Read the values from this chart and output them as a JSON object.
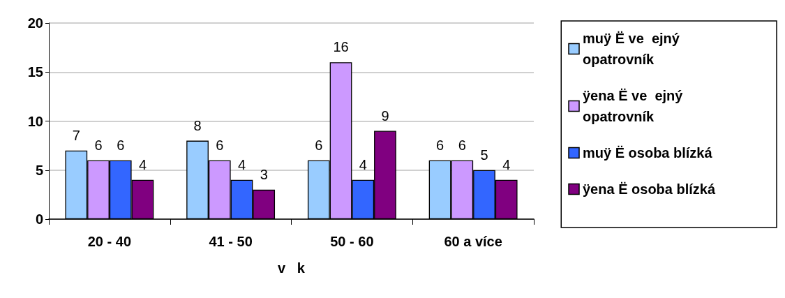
{
  "chart_data": {
    "type": "bar",
    "xlabel": "v   k",
    "categories": [
      "20 - 40",
      "41 - 50",
      "50 - 60",
      "60 a více"
    ],
    "series": [
      {
        "name": "muÿ Ë ve  ejný opatrovník",
        "color": "#99ccff",
        "values": [
          7,
          8,
          6,
          6
        ]
      },
      {
        "name": "ÿena Ë ve  ejný opatrovník",
        "color": "#cc99ff",
        "values": [
          6,
          6,
          16,
          6
        ]
      },
      {
        "name": "muÿ Ë osoba blízká",
        "color": "#3366ff",
        "values": [
          6,
          4,
          4,
          5
        ]
      },
      {
        "name": "ÿena Ë osoba blízká",
        "color": "#800080",
        "values": [
          4,
          3,
          9,
          4
        ]
      }
    ],
    "ylim": [
      0,
      20
    ],
    "yticks": [
      0,
      5,
      10,
      15,
      20
    ],
    "grid": "y",
    "legend": "right",
    "data_labels": true
  }
}
